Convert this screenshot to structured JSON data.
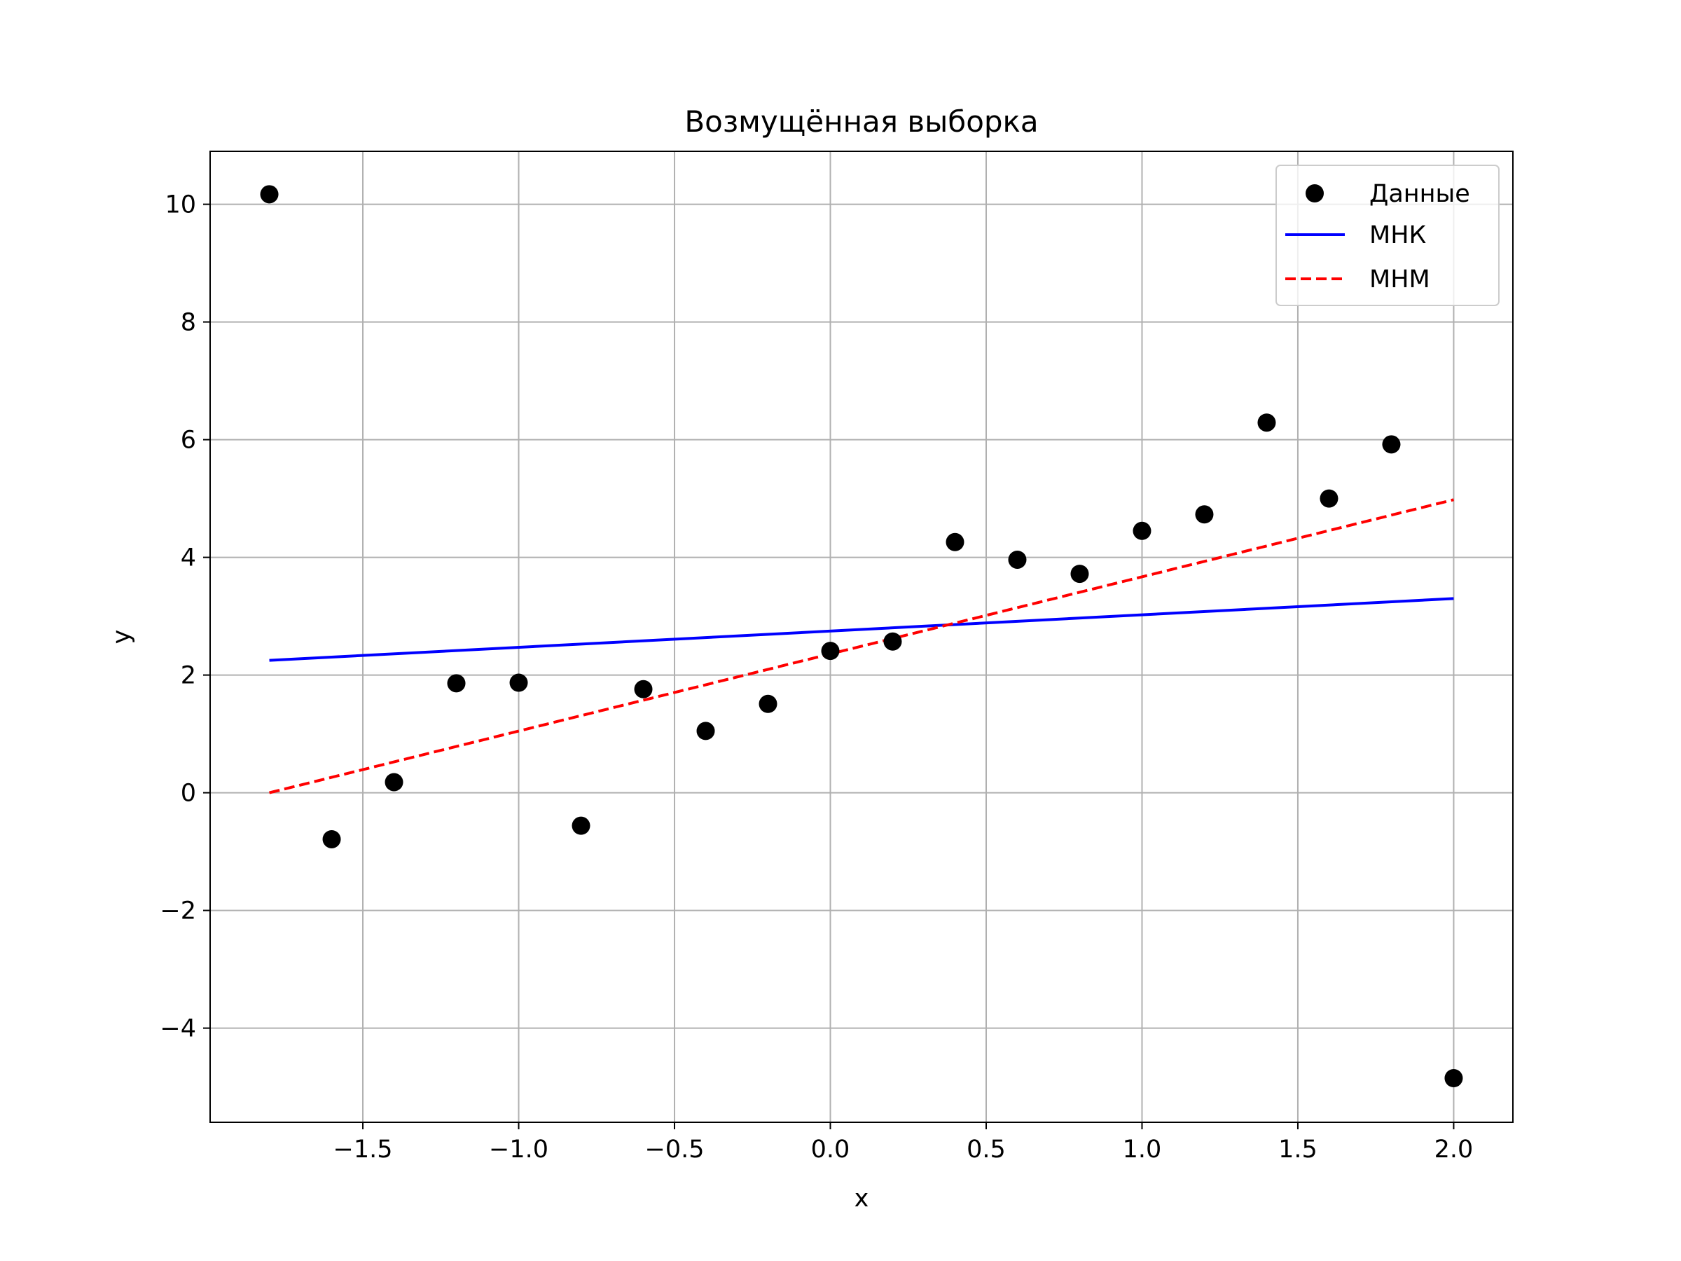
{
  "chart_data": {
    "type": "scatter",
    "title": "Возмущённая выборка",
    "xlabel": "x",
    "ylabel": "y",
    "xlim": [
      -1.99,
      2.19
    ],
    "ylim": [
      -5.6,
      10.9
    ],
    "grid": true,
    "legend_position": "top-right",
    "x_ticks": [
      -1.5,
      -1.0,
      -0.5,
      0.0,
      0.5,
      1.0,
      1.5,
      2.0
    ],
    "x_tick_labels": [
      "−1.5",
      "−1.0",
      "−0.5",
      "0.0",
      "0.5",
      "1.0",
      "1.5",
      "2.0"
    ],
    "y_ticks": [
      -4,
      -2,
      0,
      2,
      4,
      6,
      8,
      10
    ],
    "y_tick_labels": [
      "−4",
      "−2",
      "0",
      "2",
      "4",
      "6",
      "8",
      "10"
    ],
    "series": [
      {
        "name": "Данные",
        "kind": "scatter",
        "color": "#000000",
        "x": [
          -1.8,
          -1.6,
          -1.4,
          -1.2,
          -1.0,
          -0.8,
          -0.6,
          -0.4,
          -0.2,
          0.0,
          0.2,
          0.4,
          0.6,
          0.8,
          1.0,
          1.2,
          1.4,
          1.6,
          1.8,
          2.0
        ],
        "y": [
          10.17,
          -0.79,
          0.18,
          1.86,
          1.87,
          -0.56,
          1.76,
          1.05,
          1.51,
          2.41,
          2.57,
          4.26,
          3.96,
          3.72,
          4.45,
          4.73,
          6.29,
          5.0,
          5.92,
          -4.85
        ]
      },
      {
        "name": "МНК",
        "kind": "line",
        "style": "solid",
        "color": "#0000ff",
        "x": [
          -1.8,
          2.0
        ],
        "y": [
          2.25,
          3.3
        ]
      },
      {
        "name": "МНМ",
        "kind": "line",
        "style": "dashed",
        "color": "#ff0000",
        "x": [
          -1.8,
          2.0
        ],
        "y": [
          0.0,
          4.98
        ]
      }
    ]
  }
}
